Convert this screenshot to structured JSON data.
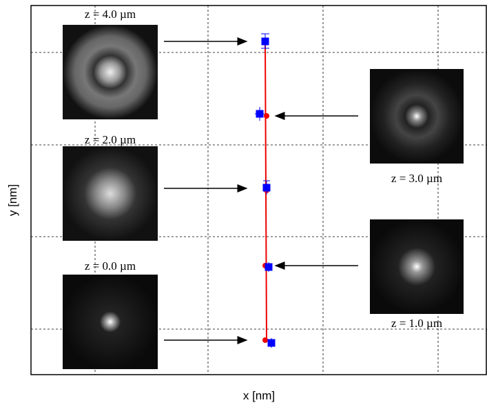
{
  "chart_data": {
    "type": "scatter",
    "x_label": "x [nm]",
    "y_label": "y [nm]",
    "grid": true,
    "annotations": [
      "z = 4.0 µm",
      "z = 3.0 µm",
      "z = 2.0 µm",
      "z = 1.0 µm",
      "z = 0.0 µm"
    ]
  }
}
